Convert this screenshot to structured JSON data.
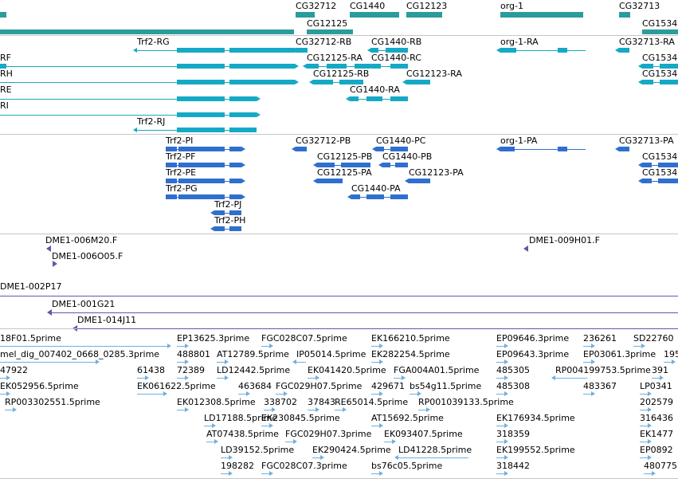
{
  "colors": {
    "gene": "#2b9c9c",
    "transcript": "#15a9c6",
    "protein": "#2f6fd0",
    "clone": "#6b54a8",
    "est": "#6fb0dc"
  },
  "tracks": {
    "genes": {
      "labels": [
        "CG32712",
        "CG1440",
        "CG12123",
        "org-1",
        "CG32713",
        "CG12125",
        "CG1534"
      ]
    },
    "transcripts": {
      "labels": [
        "Trf2-RG",
        "CG32712-RB",
        "CG1440-RB",
        "org-1-RA",
        "CG32713-RA",
        "RF",
        "CG12125-RA",
        "CG1440-RC",
        "CG1534",
        "RH",
        "CG12125-RB",
        "CG12123-RA",
        "CG1534",
        "RE",
        "CG1440-RA",
        "RI",
        "Trf2-RJ"
      ]
    },
    "proteins": {
      "labels": [
        "Trf2-PI",
        "CG32712-PB",
        "CG1440-PC",
        "org-1-PA",
        "CG32713-PA",
        "Trf2-PF",
        "CG12125-PB",
        "CG1440-PB",
        "CG1534",
        "Trf2-PE",
        "CG12125-PA",
        "CG12123-PA",
        "CG1534",
        "Trf2-PG",
        "CG1440-PA",
        "Trf2-PJ",
        "Trf2-PH"
      ]
    },
    "clone_ends": {
      "labels": [
        "DME1-006M20.F",
        "DME1-009H01.F",
        "DME1-006O05.F"
      ]
    },
    "clones": {
      "labels": [
        "DME1-002P17",
        "DME1-001G21",
        "DME1-014J11"
      ]
    },
    "ests": {
      "labels": [
        "18F01.5prime",
        "EP13625.3prime",
        "FGC028C07.5prime",
        "EK166210.5prime",
        "EP09646.3prime",
        "236261",
        "SD22760",
        "mel_dig_007402_0668_0285.3prime",
        "488801",
        "AT12789.5prime",
        "IP05014.5prime",
        "EK282254.5prime",
        "EP09643.3prime",
        "EP03061.3prime",
        "195",
        "47922",
        "61438",
        "72389",
        "LD12442.5prime",
        "EK041420.5prime",
        "FGA004A01.5prime",
        "485305",
        "RP004199753.5prime",
        "391",
        "EK052956.5prime",
        "EK061622.5prime",
        "463684",
        "FGC029H07.5prime",
        "429671",
        "bs54g11.5prime",
        "485308",
        "483367",
        "LP0341",
        "RP003302551.5prime",
        "EK012308.5prime",
        "338702",
        "37843",
        "RE65014.5prime",
        "RP001039133.5prime",
        "202579",
        "LD17188.5prime",
        "EK230845.5prime",
        "AT15692.5prime",
        "EK176934.5prime",
        "316436",
        "AT07438.5prime",
        "FGC029H07.3prime",
        "EK093407.5prime",
        "318359",
        "EK1477",
        "LD39152.5prime",
        "EK290424.5prime",
        "LD41228.5prime",
        "EK199552.5prime",
        "EP0892",
        "198282",
        "FGC028C07.3prime",
        "bs76c05.5prime",
        "318442",
        "480775"
      ]
    }
  }
}
